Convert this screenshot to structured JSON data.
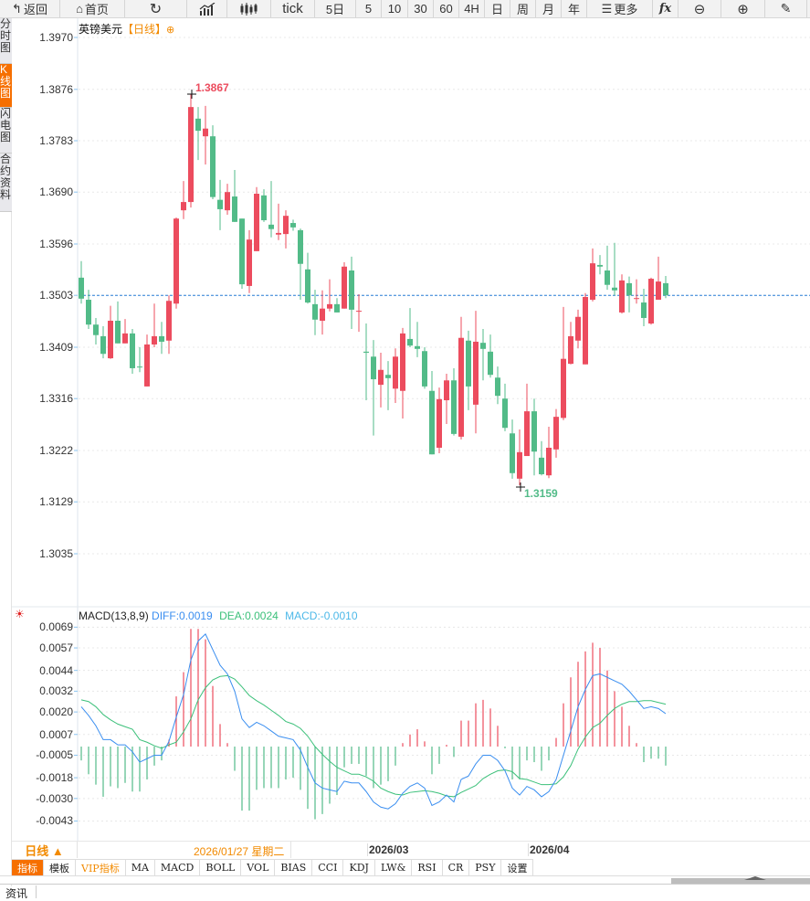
{
  "toolbar": {
    "back": "返回",
    "home": "首页",
    "tick": "tick",
    "five_day": "5日",
    "periods": [
      "5",
      "10",
      "30",
      "60",
      "4H",
      "日",
      "周",
      "月",
      "年"
    ],
    "more": "更多",
    "fx": "fx"
  },
  "side_tabs": [
    "分时图",
    "K线图",
    "闪电图",
    "合约资料"
  ],
  "chart": {
    "symbol": "英镑美元",
    "timeframe": "【日线】",
    "high_label": "1.3867",
    "low_label": "1.3159",
    "last_price": 1.3503,
    "y_ticks": [
      "1.3970",
      "1.3876",
      "1.3783",
      "1.3690",
      "1.3596",
      "1.3503",
      "1.3409",
      "1.3316",
      "1.3222",
      "1.3129",
      "1.3035"
    ]
  },
  "macd": {
    "title": "MACD(13,8,9)",
    "diff_label": "DIFF:0.0019",
    "dea_label": "DEA:0.0024",
    "macd_label": "MACD:-0.0010",
    "y_ticks": [
      "0.0069",
      "0.0057",
      "0.0044",
      "0.0032",
      "0.0020",
      "0.0007",
      "-0.0005",
      "-0.0018",
      "-0.0030",
      "-0.0043"
    ]
  },
  "date_axis": {
    "period_button": "日线 ▲",
    "cursor_date": "2026/01/27 星期二",
    "labels": [
      "2026/03",
      "2026/04"
    ]
  },
  "indicator_tabs": [
    "指标",
    "模板",
    "VIP指标",
    "MA",
    "MACD",
    "BOLL",
    "VOL",
    "BIAS",
    "CCI",
    "KDJ",
    "LW&",
    "RSI",
    "CR",
    "PSY",
    "设置"
  ],
  "news_tab": "资讯",
  "colors": {
    "up": "#ec4c5e",
    "down": "#52bb88",
    "diff": "#3a8ef0",
    "dea": "#3cc07a",
    "macd": "#4cb8e8",
    "accent": "#f66f00"
  },
  "chart_data": {
    "type": "candlestick",
    "title": "英镑美元 日线",
    "ylim": [
      1.3035,
      1.397
    ],
    "ohlc": [
      [
        1.3535,
        1.3565,
        1.3488,
        1.3497
      ],
      [
        1.3495,
        1.3513,
        1.3442,
        1.345
      ],
      [
        1.345,
        1.3462,
        1.3414,
        1.3431
      ],
      [
        1.3429,
        1.3447,
        1.3389,
        1.3397
      ],
      [
        1.3389,
        1.3484,
        1.3388,
        1.3457
      ],
      [
        1.3457,
        1.3492,
        1.3416,
        1.3416
      ],
      [
        1.3416,
        1.346,
        1.3416,
        1.3434
      ],
      [
        1.3434,
        1.3442,
        1.3361,
        1.3371
      ],
      [
        1.3374,
        1.3409,
        1.3364,
        1.3373
      ],
      [
        1.3338,
        1.3432,
        1.3338,
        1.3414
      ],
      [
        1.3414,
        1.3488,
        1.3409,
        1.3429
      ],
      [
        1.3429,
        1.3455,
        1.3397,
        1.3419
      ],
      [
        1.3421,
        1.3503,
        1.3397,
        1.3493
      ],
      [
        1.3488,
        1.3644,
        1.3479,
        1.3642
      ],
      [
        1.3657,
        1.371,
        1.3641,
        1.3672
      ],
      [
        1.3672,
        1.3867,
        1.3662,
        1.3844
      ],
      [
        1.3823,
        1.3844,
        1.3748,
        1.3801
      ],
      [
        1.3791,
        1.3846,
        1.374,
        1.3805
      ],
      [
        1.3791,
        1.3811,
        1.3677,
        1.3681
      ],
      [
        1.3676,
        1.3712,
        1.3621,
        1.3659
      ],
      [
        1.3657,
        1.3705,
        1.3649,
        1.369
      ],
      [
        1.3682,
        1.373,
        1.3636,
        1.3636
      ],
      [
        1.3642,
        1.3642,
        1.3515,
        1.3523
      ],
      [
        1.352,
        1.3621,
        1.3507,
        1.3604
      ],
      [
        1.3583,
        1.3699,
        1.3583,
        1.3687
      ],
      [
        1.3684,
        1.3695,
        1.3636,
        1.3639
      ],
      [
        1.3631,
        1.371,
        1.3608,
        1.3623
      ],
      [
        1.3613,
        1.3669,
        1.3603,
        1.3616
      ],
      [
        1.3614,
        1.3657,
        1.3588,
        1.3647
      ],
      [
        1.3634,
        1.364,
        1.362,
        1.3626
      ],
      [
        1.3621,
        1.3624,
        1.3495,
        1.356
      ],
      [
        1.355,
        1.358,
        1.3488,
        1.349
      ],
      [
        1.3487,
        1.3513,
        1.3431,
        1.3459
      ],
      [
        1.3457,
        1.3512,
        1.3432,
        1.3479
      ],
      [
        1.3479,
        1.3532,
        1.3474,
        1.3487
      ],
      [
        1.3487,
        1.3498,
        1.3472,
        1.3472
      ],
      [
        1.3479,
        1.3563,
        1.3479,
        1.3555
      ],
      [
        1.3548,
        1.3573,
        1.3442,
        1.3477
      ],
      [
        1.3474,
        1.3505,
        1.3437,
        1.3475
      ],
      [
        1.3401,
        1.3452,
        1.3313,
        1.3399
      ],
      [
        1.3392,
        1.3422,
        1.3249,
        1.3351
      ],
      [
        1.3341,
        1.3399,
        1.33,
        1.3368
      ],
      [
        1.3359,
        1.3384,
        1.3295,
        1.3353
      ],
      [
        1.3334,
        1.3407,
        1.3308,
        1.3392
      ],
      [
        1.333,
        1.3444,
        1.328,
        1.3434
      ],
      [
        1.3424,
        1.348,
        1.3409,
        1.3412
      ],
      [
        1.3411,
        1.3455,
        1.3391,
        1.3406
      ],
      [
        1.3402,
        1.3409,
        1.3334,
        1.3338
      ],
      [
        1.333,
        1.3366,
        1.3215,
        1.3215
      ],
      [
        1.3227,
        1.3336,
        1.3217,
        1.3315
      ],
      [
        1.3313,
        1.3361,
        1.327,
        1.3349
      ],
      [
        1.3349,
        1.3371,
        1.3249,
        1.3252
      ],
      [
        1.3247,
        1.3464,
        1.3242,
        1.3426
      ],
      [
        1.3421,
        1.3439,
        1.3295,
        1.3338
      ],
      [
        1.3305,
        1.3475,
        1.3253,
        1.3419
      ],
      [
        1.3417,
        1.3442,
        1.3349,
        1.3406
      ],
      [
        1.3401,
        1.3432,
        1.3354,
        1.3359
      ],
      [
        1.3354,
        1.3374,
        1.3306,
        1.3321
      ],
      [
        1.3316,
        1.3343,
        1.3257,
        1.3263
      ],
      [
        1.3253,
        1.3278,
        1.3171,
        1.3181
      ],
      [
        1.3171,
        1.326,
        1.3159,
        1.3219
      ],
      [
        1.3212,
        1.3343,
        1.3212,
        1.3293
      ],
      [
        1.3293,
        1.3316,
        1.3177,
        1.322
      ],
      [
        1.3209,
        1.3239,
        1.3177,
        1.3179
      ],
      [
        1.3177,
        1.3265,
        1.3172,
        1.3227
      ],
      [
        1.3224,
        1.3297,
        1.3209,
        1.3283
      ],
      [
        1.3281,
        1.3482,
        1.3277,
        1.3388
      ],
      [
        1.3379,
        1.3455,
        1.3378,
        1.3429
      ],
      [
        1.3421,
        1.3477,
        1.3407,
        1.3464
      ],
      [
        1.3378,
        1.3507,
        1.3378,
        1.35
      ],
      [
        1.3495,
        1.3588,
        1.3492,
        1.3561
      ],
      [
        1.3558,
        1.3576,
        1.3541,
        1.3555
      ],
      [
        1.3548,
        1.3593,
        1.3513,
        1.3522
      ],
      [
        1.3517,
        1.3598,
        1.3503,
        1.3512
      ],
      [
        1.3472,
        1.3541,
        1.347,
        1.353
      ],
      [
        1.3525,
        1.3537,
        1.3472,
        1.3503
      ],
      [
        1.3497,
        1.3532,
        1.3488,
        1.3498
      ],
      [
        1.349,
        1.3515,
        1.3447,
        1.3462
      ],
      [
        1.3452,
        1.3535,
        1.345,
        1.3533
      ],
      [
        1.3495,
        1.3573,
        1.3495,
        1.3528
      ],
      [
        1.3525,
        1.3538,
        1.3498,
        1.3503
      ]
    ],
    "macd": {
      "ylim": [
        -0.0048,
        0.0075
      ],
      "diff": [
        0.0023,
        0.0018,
        0.0012,
        0.0004,
        0.0004,
        0.0001,
        0.0001,
        -0.0003,
        -0.0009,
        -0.0007,
        -0.0005,
        -0.0005,
        0.0003,
        0.0017,
        0.003,
        0.005,
        0.0061,
        0.0065,
        0.0056,
        0.0047,
        0.0042,
        0.0032,
        0.0016,
        0.0011,
        0.0014,
        0.0012,
        0.0009,
        0.0006,
        0.0005,
        0.0004,
        -0.0002,
        -0.0012,
        -0.0021,
        -0.0024,
        -0.0025,
        -0.0026,
        -0.002,
        -0.0021,
        -0.0021,
        -0.0026,
        -0.0032,
        -0.0035,
        -0.0036,
        -0.0033,
        -0.0027,
        -0.0023,
        -0.0021,
        -0.0024,
        -0.0034,
        -0.0032,
        -0.0028,
        -0.0032,
        -0.0019,
        -0.0017,
        -0.001,
        -0.0005,
        -0.0005,
        -0.0008,
        -0.0014,
        -0.0024,
        -0.0028,
        -0.0023,
        -0.0025,
        -0.0029,
        -0.0026,
        -0.0019,
        -0.0005,
        0.0009,
        0.0023,
        0.0033,
        0.0041,
        0.0042,
        0.004,
        0.0038,
        0.0036,
        0.0032,
        0.0027,
        0.0022,
        0.0023,
        0.0022,
        0.0019
      ],
      "hist": [
        -0.0008,
        -0.0016,
        -0.0022,
        -0.0029,
        -0.0023,
        -0.0024,
        -0.0021,
        -0.0026,
        -0.0026,
        -0.0019,
        -0.0011,
        -0.0008,
        0.0004,
        0.0029,
        0.0043,
        0.0068,
        0.0068,
        0.0062,
        0.0035,
        0.0013,
        0.0002,
        -0.0014,
        -0.0037,
        -0.0037,
        -0.0025,
        -0.0024,
        -0.0024,
        -0.0024,
        -0.0019,
        -0.0018,
        -0.0025,
        -0.0036,
        -0.0042,
        -0.0039,
        -0.0033,
        -0.0028,
        -0.0012,
        -0.001,
        -0.001,
        -0.0017,
        -0.0024,
        -0.0022,
        -0.002,
        -0.0011,
        0.0002,
        0.0007,
        0.001,
        0.0003,
        -0.0016,
        -0.001,
        0.0001,
        -0.0006,
        0.0015,
        0.0015,
        0.0025,
        0.0027,
        0.0022,
        0.0012,
        -0.0001,
        -0.0019,
        -0.0019,
        -0.0008,
        -0.0009,
        -0.0014,
        -0.0008,
        0.0005,
        0.0025,
        0.004,
        0.0049,
        0.0055,
        0.006,
        0.0057,
        0.0044,
        0.0032,
        0.0023,
        0.0012,
        0.0002,
        -0.0009,
        -0.0007,
        -0.0007,
        -0.0011
      ]
    }
  }
}
